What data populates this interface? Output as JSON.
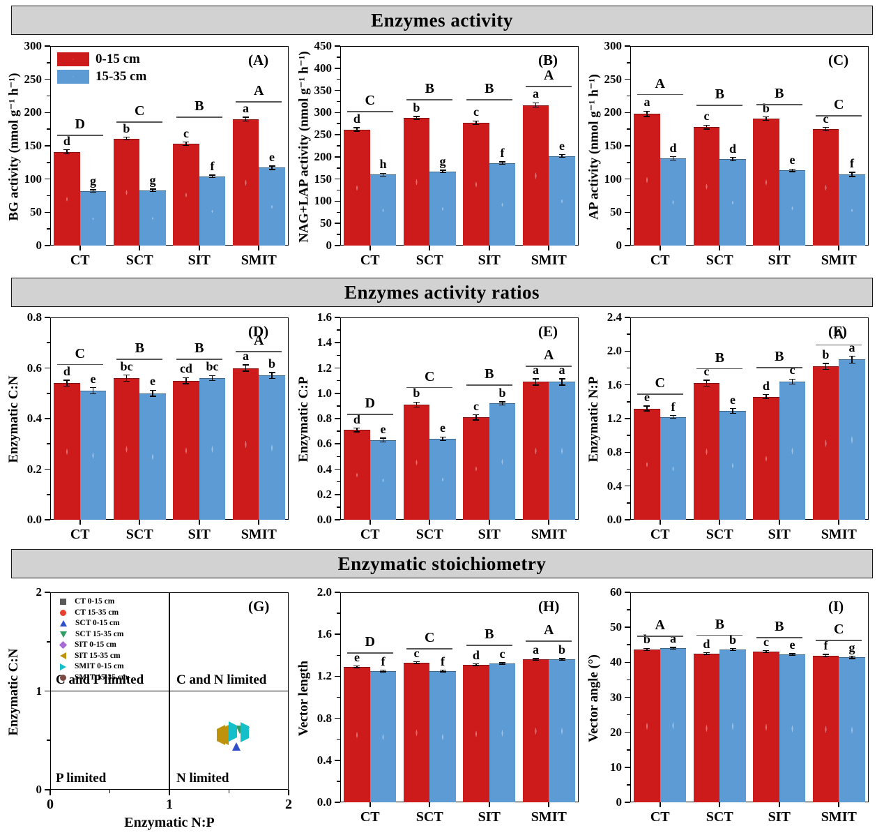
{
  "headers": {
    "row1": "Enzymes activity",
    "row2": "Enzymes activity ratios",
    "row3": "Enzymatic stoichiometry"
  },
  "legend": {
    "series1": "0-15 cm",
    "series2": "15-35 cm"
  },
  "colors": {
    "bar_red": "#cd1a1b",
    "bar_blue": "#5d9bd5",
    "header_bg": "#d2d2d2",
    "sig_line": "#555555"
  },
  "categories": [
    "CT",
    "SCT",
    "SIT",
    "SMIT"
  ],
  "chart_data": [
    {
      "panel": "A",
      "tag": "(A)",
      "type": "bar",
      "row": 1,
      "show_legend": true,
      "ylabel": "BG activity (nmol g⁻¹ h⁻¹)",
      "ylim": [
        0,
        300
      ],
      "ytick_labels": [
        "0",
        "50",
        "100",
        "150",
        "200",
        "250",
        "300"
      ],
      "categories": [
        "CT",
        "SCT",
        "SIT",
        "SMIT"
      ],
      "series": [
        {
          "name": "0-15 cm",
          "color": "bar_red",
          "values": [
            141,
            161,
            153,
            190
          ],
          "errors": [
            3,
            2,
            2.5,
            3
          ],
          "letters": [
            "d",
            "b",
            "c",
            "a"
          ]
        },
        {
          "name": "15-35 cm",
          "color": "bar_blue",
          "values": [
            82,
            83,
            104,
            117
          ],
          "errors": [
            2,
            2,
            2,
            2.5
          ],
          "letters": [
            "g",
            "g",
            "f",
            "e"
          ]
        }
      ],
      "sig": [
        {
          "label": "D",
          "value": 167
        },
        {
          "label": "C",
          "value": 187
        },
        {
          "label": "B",
          "value": 194
        },
        {
          "label": "A",
          "value": 217
        }
      ]
    },
    {
      "panel": "B",
      "tag": "(B)",
      "type": "bar",
      "row": 1,
      "show_legend": false,
      "ylabel": "NAG+LAP activity (nmol g⁻¹ h⁻¹)",
      "ylim": [
        0,
        450
      ],
      "ytick_labels": [
        "0",
        "50",
        "100",
        "150",
        "200",
        "250",
        "300",
        "350",
        "400",
        "450"
      ],
      "categories": [
        "CT",
        "SCT",
        "SIT",
        "SMIT"
      ],
      "series": [
        {
          "name": "0-15 cm",
          "color": "bar_red",
          "values": [
            262,
            288,
            277,
            317
          ],
          "errors": [
            4,
            3,
            4,
            5
          ],
          "letters": [
            "d",
            "b",
            "c",
            "a"
          ]
        },
        {
          "name": "15-35 cm",
          "color": "bar_blue",
          "values": [
            160,
            167,
            186,
            202
          ],
          "errors": [
            3,
            3,
            3,
            3
          ],
          "letters": [
            "h",
            "g",
            "f",
            "e"
          ]
        }
      ],
      "sig": [
        {
          "label": "C",
          "value": 303
        },
        {
          "label": "B",
          "value": 330
        },
        {
          "label": "B",
          "value": 330
        },
        {
          "label": "A",
          "value": 360
        }
      ]
    },
    {
      "panel": "C",
      "tag": "(C)",
      "type": "bar",
      "row": 1,
      "show_legend": false,
      "ylabel": "AP activity (nmol g⁻¹ h⁻¹)",
      "ylim": [
        0,
        300
      ],
      "ytick_labels": [
        "0",
        "50",
        "100",
        "150",
        "200",
        "250",
        "300"
      ],
      "categories": [
        "CT",
        "SCT",
        "SIT",
        "SMIT"
      ],
      "series": [
        {
          "name": "0-15 cm",
          "color": "bar_red",
          "values": [
            198,
            178,
            191,
            175
          ],
          "errors": [
            4,
            3,
            2.5,
            2.5
          ],
          "letters": [
            "a",
            "c",
            "b",
            "c"
          ]
        },
        {
          "name": "15-35 cm",
          "color": "bar_blue",
          "values": [
            131,
            130,
            113,
            107
          ],
          "errors": [
            2.5,
            2.5,
            2,
            3
          ],
          "letters": [
            "d",
            "d",
            "e",
            "f"
          ]
        }
      ],
      "sig": [
        {
          "label": "A",
          "value": 228
        },
        {
          "label": "B",
          "value": 212
        },
        {
          "label": "B",
          "value": 213
        },
        {
          "label": "C",
          "value": 196
        }
      ]
    },
    {
      "panel": "D",
      "tag": "(D)",
      "type": "bar",
      "row": 2,
      "show_legend": false,
      "ylabel": "Enzymatic C:N",
      "ylim": [
        0,
        0.8
      ],
      "ytick_labels": [
        "0.0",
        "0.2",
        "0.4",
        "0.6",
        "0.8"
      ],
      "categories": [
        "CT",
        "SCT",
        "SIT",
        "SMIT"
      ],
      "series": [
        {
          "name": "0-15 cm",
          "color": "bar_red",
          "values": [
            0.54,
            0.56,
            0.55,
            0.6
          ],
          "errors": [
            0.012,
            0.012,
            0.012,
            0.012
          ],
          "letters": [
            "d",
            "bc",
            "cd",
            "a"
          ]
        },
        {
          "name": "15-35 cm",
          "color": "bar_blue",
          "values": [
            0.51,
            0.5,
            0.56,
            0.57
          ],
          "errors": [
            0.012,
            0.012,
            0.01,
            0.012
          ],
          "letters": [
            "e",
            "e",
            "bc",
            "b"
          ]
        }
      ],
      "sig": [
        {
          "label": "C",
          "value": 0.616
        },
        {
          "label": "B",
          "value": 0.638
        },
        {
          "label": "B",
          "value": 0.638
        },
        {
          "label": "A",
          "value": 0.668
        }
      ]
    },
    {
      "panel": "E",
      "tag": "(E)",
      "type": "bar",
      "row": 2,
      "show_legend": false,
      "ylabel": "Enzymatic C:P",
      "ylim": [
        0,
        1.6
      ],
      "ytick_labels": [
        "0.0",
        "0.2",
        "0.4",
        "0.6",
        "0.8",
        "1.0",
        "1.2",
        "1.4",
        "1.6"
      ],
      "categories": [
        "CT",
        "SCT",
        "SIT",
        "SMIT"
      ],
      "series": [
        {
          "name": "0-15 cm",
          "color": "bar_red",
          "values": [
            0.71,
            0.91,
            0.81,
            1.09
          ],
          "errors": [
            0.015,
            0.02,
            0.02,
            0.025
          ],
          "letters": [
            "d",
            "b",
            "c",
            "a"
          ]
        },
        {
          "name": "15-35 cm",
          "color": "bar_blue",
          "values": [
            0.63,
            0.64,
            0.92,
            1.09
          ],
          "errors": [
            0.015,
            0.015,
            0.012,
            0.025
          ],
          "letters": [
            "e",
            "e",
            "b",
            "a"
          ]
        }
      ],
      "sig": [
        {
          "label": "D",
          "value": 0.837
        },
        {
          "label": "C",
          "value": 1.05
        },
        {
          "label": "B",
          "value": 1.07
        },
        {
          "label": "A",
          "value": 1.22
        }
      ]
    },
    {
      "panel": "F",
      "tag": "(F)",
      "type": "bar",
      "row": 2,
      "show_legend": false,
      "ylabel": "Enzymatic N:P",
      "ylim": [
        0,
        2.4
      ],
      "ytick_labels": [
        "0.0",
        "0.4",
        "0.8",
        "1.2",
        "1.6",
        "2.0",
        "2.4"
      ],
      "categories": [
        "CT",
        "SCT",
        "SIT",
        "SMIT"
      ],
      "series": [
        {
          "name": "0-15 cm",
          "color": "bar_red",
          "values": [
            1.32,
            1.62,
            1.46,
            1.82
          ],
          "errors": [
            0.03,
            0.035,
            0.025,
            0.035
          ],
          "letters": [
            "e",
            "c",
            "d",
            "b"
          ]
        },
        {
          "name": "15-35 cm",
          "color": "bar_blue",
          "values": [
            1.22,
            1.29,
            1.64,
            1.9
          ],
          "errors": [
            0.015,
            0.03,
            0.03,
            0.04
          ],
          "letters": [
            "f",
            "e",
            "c",
            "a"
          ]
        }
      ],
      "sig": [
        {
          "label": "C",
          "value": 1.5
        },
        {
          "label": "B",
          "value": 1.8
        },
        {
          "label": "B",
          "value": 1.81
        },
        {
          "label": "A",
          "value": 2.08
        }
      ]
    },
    {
      "panel": "G",
      "tag": "(G)",
      "type": "scatter",
      "row": 3,
      "xlabel": "Enzymatic N:P",
      "ylabel": "Enzymatic C:N",
      "xlim": [
        0,
        2
      ],
      "ylim": [
        0,
        2
      ],
      "xtick_labels": [
        "0",
        "1",
        "2"
      ],
      "ytick_labels": [
        "0",
        "1",
        "2"
      ],
      "quadrant_labels": {
        "top_left": "C and P limited",
        "top_right": "C and N limited",
        "bottom_left": "P limited",
        "bottom_right": "N limited"
      },
      "series": [
        {
          "name": "CT 0-15 cm",
          "marker": "square",
          "color": "#595959",
          "points": [
            [
              1.59,
              0.55
            ]
          ]
        },
        {
          "name": "CT 15-35 cm",
          "marker": "circle",
          "color": "#e8402f",
          "points": [
            [
              1.55,
              0.52
            ]
          ]
        },
        {
          "name": "SCT 0-15 cm",
          "marker": "tri-up",
          "color": "#2d50c8",
          "points": [
            [
              1.56,
              0.56
            ]
          ]
        },
        {
          "name": "SCT 15-35 cm",
          "marker": "tri-down",
          "color": "#2f9e63",
          "points": [
            [
              1.59,
              0.52
            ],
            [
              1.64,
              0.51
            ]
          ]
        },
        {
          "name": "SIT 0-15 cm",
          "marker": "diamond",
          "color": "#a76bd5",
          "points": [
            [
              1.55,
              0.57
            ]
          ]
        },
        {
          "name": "SIT 15-35 cm",
          "marker": "tri-left",
          "color": "#be930b",
          "points": [
            [
              1.43,
              0.57
            ],
            [
              1.46,
              0.57
            ]
          ]
        },
        {
          "name": "SMIT 0-15 cm",
          "marker": "tri-right",
          "color": "#15bfc9",
          "points": [
            [
              1.53,
              0.61
            ],
            [
              1.63,
              0.6
            ]
          ]
        },
        {
          "name": "SMIT 15-35 cm",
          "marker": "circle",
          "color": "#7b4842",
          "points": [
            [
              1.47,
              0.58
            ],
            [
              1.53,
              0.6
            ]
          ]
        }
      ]
    },
    {
      "panel": "H",
      "tag": "(H)",
      "type": "bar",
      "row": 3,
      "show_legend": false,
      "ylabel": "Vector length",
      "ylim": [
        0,
        2.0
      ],
      "ytick_labels": [
        "0.0",
        "0.4",
        "0.8",
        "1.2",
        "1.6",
        "2.0"
      ],
      "categories": [
        "CT",
        "SCT",
        "SIT",
        "SMIT"
      ],
      "series": [
        {
          "name": "0-15 cm",
          "color": "bar_red",
          "values": [
            1.29,
            1.33,
            1.31,
            1.36
          ],
          "errors": [
            0.008,
            0.008,
            0.008,
            0.008
          ],
          "letters": [
            "e",
            "c",
            "d",
            "a"
          ]
        },
        {
          "name": "15-35 cm",
          "color": "bar_blue",
          "values": [
            1.25,
            1.25,
            1.32,
            1.36
          ],
          "errors": [
            0.008,
            0.008,
            0.008,
            0.008
          ],
          "letters": [
            "f",
            "f",
            "c",
            "b"
          ]
        }
      ],
      "sig": [
        {
          "label": "D",
          "value": 1.43
        },
        {
          "label": "C",
          "value": 1.47
        },
        {
          "label": "B",
          "value": 1.5
        },
        {
          "label": "A",
          "value": 1.54
        }
      ]
    },
    {
      "panel": "I",
      "tag": "(I)",
      "type": "bar",
      "row": 3,
      "show_legend": false,
      "ylabel": "Vector angle (°)",
      "ylim": [
        0,
        60
      ],
      "ytick_labels": [
        "0",
        "10",
        "20",
        "30",
        "40",
        "50",
        "60"
      ],
      "categories": [
        "CT",
        "SCT",
        "SIT",
        "SMIT"
      ],
      "series": [
        {
          "name": "0-15 cm",
          "color": "bar_red",
          "values": [
            43.7,
            42.5,
            43.0,
            41.9
          ],
          "errors": [
            0.3,
            0.25,
            0.3,
            0.35
          ],
          "letters": [
            "b",
            "d",
            "c",
            "f"
          ]
        },
        {
          "name": "15-35 cm",
          "color": "bar_blue",
          "values": [
            44.0,
            43.6,
            42.2,
            41.4
          ],
          "errors": [
            0.25,
            0.3,
            0.25,
            0.3
          ],
          "letters": [
            "a",
            "b",
            "e",
            "g"
          ]
        }
      ],
      "sig": [
        {
          "label": "A",
          "value": 47.7
        },
        {
          "label": "B",
          "value": 47.9
        },
        {
          "label": "B",
          "value": 47.3
        },
        {
          "label": "C",
          "value": 46.4
        }
      ]
    }
  ]
}
